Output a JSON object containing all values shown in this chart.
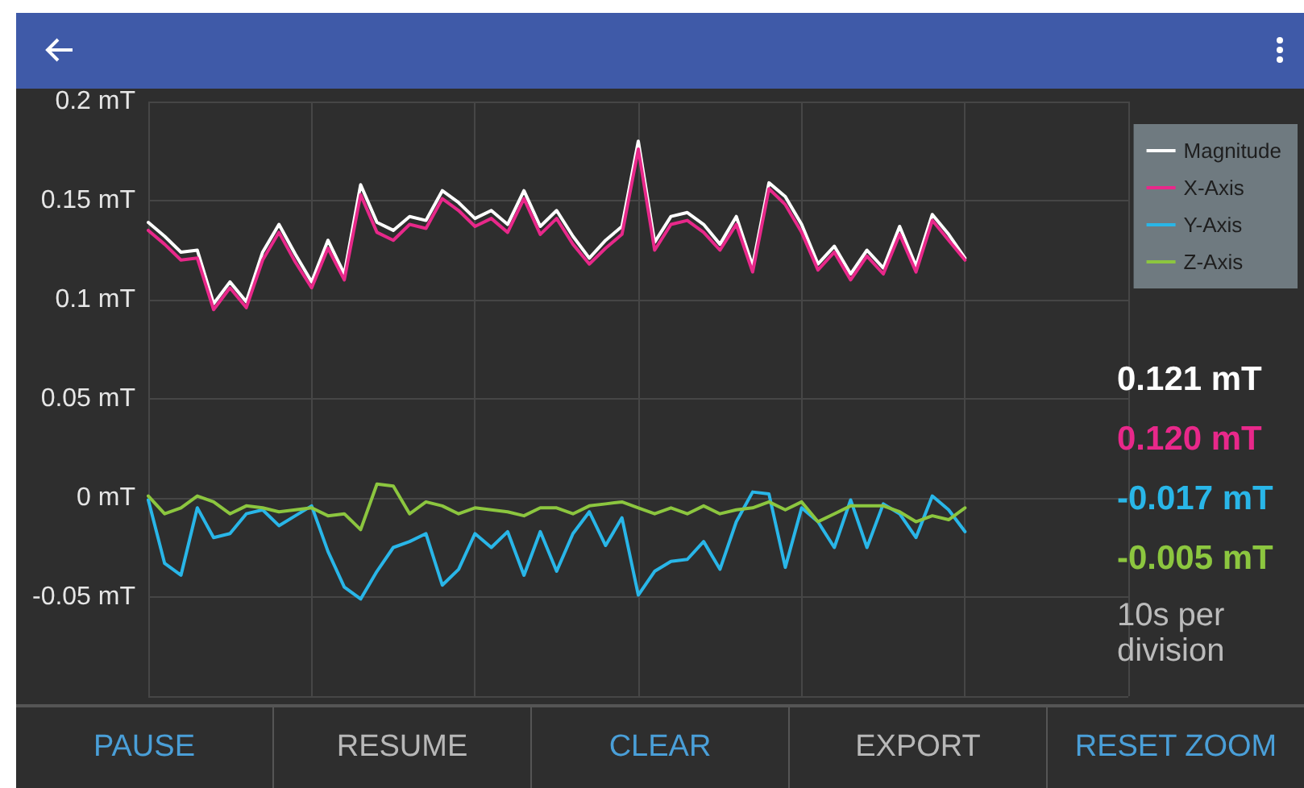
{
  "chart_data": {
    "type": "line",
    "annotations": [
      "0.121 mT",
      "0.120 mT",
      "-0.017 mT",
      "-0.005 mT",
      "10s per division",
      "PAUSE",
      "RESUME",
      "CLEAR",
      "EXPORT",
      "RESET ZOOM"
    ],
    "categories": [
      null,
      null,
      null,
      null,
      null,
      null,
      null,
      null,
      null,
      null,
      null,
      null,
      null,
      null,
      null,
      null,
      null,
      null,
      null,
      null,
      null,
      null,
      null,
      null,
      null,
      null,
      null,
      null,
      null,
      null,
      null,
      null,
      null,
      null,
      null,
      null,
      null,
      null,
      null,
      null,
      null,
      null,
      null,
      null,
      null,
      null,
      null,
      null,
      null,
      null,
      null,
      null,
      null,
      null,
      null,
      null,
      null,
      null,
      null,
      null,
      null
    ],
    "series": [
      {
        "name": "Magnitude",
        "color": "#ffffff",
        "values": [
          0.139,
          0.132,
          0.124,
          0.125,
          0.098,
          0.109,
          0.099,
          0.124,
          0.138,
          0.123,
          0.109,
          0.13,
          0.113,
          0.158,
          0.139,
          0.135,
          0.142,
          0.14,
          0.155,
          0.149,
          0.141,
          0.145,
          0.138,
          0.155,
          0.137,
          0.145,
          0.132,
          0.121,
          0.13,
          0.137,
          0.18,
          0.129,
          0.142,
          0.144,
          0.138,
          0.128,
          0.142,
          0.117,
          0.159,
          0.152,
          0.138,
          0.118,
          0.127,
          0.113,
          0.125,
          0.116,
          0.137,
          0.117,
          0.143,
          0.133,
          0.121,
          null,
          null,
          null,
          null,
          null,
          null,
          null,
          null,
          null,
          null
        ]
      },
      {
        "name": "X-Axis",
        "color": "#e8288a",
        "values": [
          0.135,
          0.128,
          0.12,
          0.121,
          0.095,
          0.106,
          0.096,
          0.12,
          0.134,
          0.119,
          0.106,
          0.126,
          0.11,
          0.153,
          0.134,
          0.13,
          0.138,
          0.136,
          0.151,
          0.145,
          0.137,
          0.141,
          0.134,
          0.151,
          0.133,
          0.141,
          0.128,
          0.118,
          0.126,
          0.133,
          0.176,
          0.125,
          0.138,
          0.14,
          0.134,
          0.125,
          0.138,
          0.114,
          0.156,
          0.148,
          0.134,
          0.115,
          0.124,
          0.11,
          0.122,
          0.113,
          0.133,
          0.114,
          0.14,
          0.13,
          0.12,
          null,
          null,
          null,
          null,
          null,
          null,
          null,
          null,
          null,
          null
        ]
      },
      {
        "name": "Y-Axis",
        "color": "#29b6e8",
        "values": [
          -0.001,
          -0.033,
          -0.039,
          -0.005,
          -0.02,
          -0.018,
          -0.008,
          -0.006,
          -0.014,
          -0.009,
          -0.004,
          -0.027,
          -0.045,
          -0.051,
          -0.037,
          -0.025,
          -0.022,
          -0.018,
          -0.044,
          -0.036,
          -0.018,
          -0.025,
          -0.017,
          -0.039,
          -0.017,
          -0.037,
          -0.018,
          -0.007,
          -0.024,
          -0.01,
          -0.049,
          -0.037,
          -0.032,
          -0.031,
          -0.022,
          -0.036,
          -0.012,
          0.003,
          0.002,
          -0.035,
          -0.005,
          -0.012,
          -0.025,
          -0.001,
          -0.025,
          -0.003,
          -0.008,
          -0.02,
          0.001,
          -0.006,
          -0.017,
          null,
          null,
          null,
          null,
          null,
          null,
          null,
          null,
          null,
          null
        ]
      },
      {
        "name": "Z-Axis",
        "color": "#8cc63f",
        "values": [
          0.001,
          -0.008,
          -0.005,
          0.001,
          -0.002,
          -0.008,
          -0.004,
          -0.005,
          -0.007,
          -0.006,
          -0.005,
          -0.009,
          -0.008,
          -0.016,
          0.007,
          0.006,
          -0.008,
          -0.002,
          -0.004,
          -0.008,
          -0.005,
          -0.006,
          -0.007,
          -0.009,
          -0.005,
          -0.005,
          -0.008,
          -0.004,
          -0.003,
          -0.002,
          -0.005,
          -0.008,
          -0.005,
          -0.008,
          -0.004,
          -0.008,
          -0.006,
          -0.005,
          -0.002,
          -0.006,
          -0.002,
          -0.012,
          -0.008,
          -0.004,
          -0.004,
          -0.004,
          -0.007,
          -0.012,
          -0.009,
          -0.011,
          -0.005,
          null,
          null,
          null,
          null,
          null,
          null,
          null,
          null,
          null,
          null
        ]
      }
    ],
    "ylim": [
      -0.1,
      0.2
    ],
    "yticks": [
      {
        "value": -0.1,
        "label": null
      },
      {
        "value": -0.05,
        "label": "-0.05 mT"
      },
      {
        "value": 0,
        "label": "0 mT"
      },
      {
        "value": 0.05,
        "label": "0.05 mT"
      },
      {
        "value": 0.1,
        "label": "0.1 mT"
      },
      {
        "value": 0.15,
        "label": "0.15 mT"
      },
      {
        "value": 0.2,
        "label": "0.2 mT"
      }
    ],
    "tick_labels": "y",
    "grid": true,
    "legend": "top right",
    "marker": "none",
    "line_style": "solid"
  }
}
